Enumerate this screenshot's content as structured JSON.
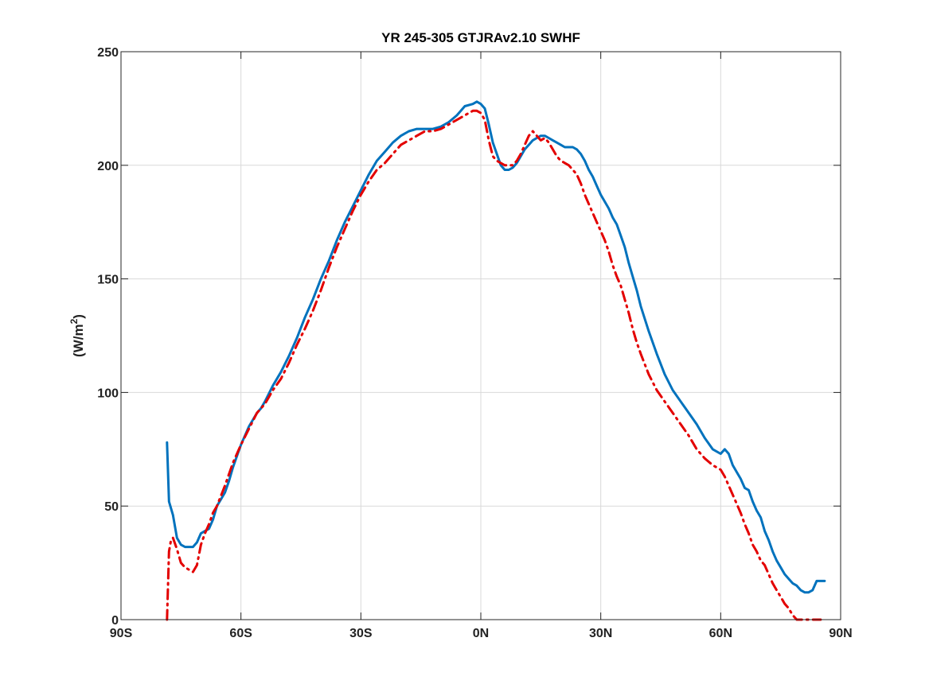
{
  "chart_data": {
    "type": "line",
    "title": "YR 245-305 GTJRAv2.10    SWHF",
    "ylabel_main": "(W/m",
    "ylabel_sup": "2",
    "ylabel_close": ")",
    "xlabel": "",
    "xlim": [
      -90,
      90
    ],
    "ylim": [
      0,
      250
    ],
    "xticks": [
      -90,
      -60,
      -30,
      0,
      30,
      60,
      90
    ],
    "xtick_labels": [
      "90S",
      "60S",
      "30S",
      "0N",
      "30N",
      "60N",
      "90N"
    ],
    "yticks": [
      0,
      50,
      100,
      150,
      200,
      250
    ],
    "ytick_labels": [
      "0",
      "50",
      "100",
      "150",
      "200",
      "250"
    ],
    "grid": true,
    "series": [
      {
        "color": "#0072BD",
        "style": "solid",
        "x": [
          -78.5,
          -78,
          -77,
          -76,
          -75,
          -74,
          -73,
          -72,
          -71,
          -70,
          -69,
          -68,
          -67,
          -66,
          -65,
          -64,
          -63,
          -62,
          -61,
          -60,
          -59,
          -58,
          -57,
          -56,
          -55,
          -54,
          -52,
          -50,
          -48,
          -46,
          -44,
          -42,
          -40,
          -38,
          -36,
          -34,
          -32,
          -30,
          -28,
          -26,
          -24,
          -22,
          -20,
          -18,
          -16,
          -14,
          -12,
          -10,
          -8,
          -6,
          -4,
          -2,
          -1,
          0,
          1,
          2,
          3,
          4,
          5,
          6,
          7,
          8,
          9,
          10,
          11,
          12,
          13,
          14,
          15,
          16,
          17,
          18,
          19,
          20,
          21,
          22,
          23,
          24,
          25,
          26,
          27,
          28,
          29,
          30,
          31,
          32,
          33,
          34,
          35,
          36,
          37,
          38,
          39,
          40,
          42,
          44,
          46,
          48,
          50,
          52,
          54,
          56,
          58,
          60,
          61,
          62,
          63,
          64,
          65,
          66,
          67,
          68,
          69,
          70,
          71,
          72,
          73,
          74,
          75,
          76,
          77,
          78,
          79,
          80,
          81,
          82,
          83,
          84,
          85,
          86
        ],
        "y": [
          78,
          52,
          46,
          36,
          33,
          32,
          32,
          32,
          34,
          38,
          39,
          40,
          44,
          50,
          53,
          56,
          61,
          67,
          72,
          77,
          81,
          85,
          88,
          91,
          93,
          96,
          103,
          109,
          116,
          124,
          133,
          141,
          150,
          158,
          167,
          175,
          182,
          189,
          196,
          202,
          206,
          210,
          213,
          215,
          216,
          216,
          216,
          217,
          219,
          222,
          226,
          227,
          228,
          227,
          225,
          218,
          210,
          205,
          200,
          198,
          198,
          199,
          201,
          204,
          207,
          209,
          211,
          212,
          213,
          213,
          212,
          211,
          210,
          209,
          208,
          208,
          208,
          207,
          205,
          202,
          198,
          195,
          191,
          187,
          184,
          181,
          177,
          174,
          169,
          164,
          157,
          151,
          145,
          138,
          127,
          117,
          108,
          101,
          96,
          91,
          86,
          80,
          75,
          73,
          75,
          73,
          68,
          65,
          62,
          58,
          57,
          52,
          48,
          45,
          39,
          35,
          30,
          26,
          23,
          20,
          18,
          16,
          15,
          13,
          12,
          12,
          13,
          17,
          17,
          17
        ],
        "note": ""
      },
      {
        "color": "#E30000",
        "style": "dashdot",
        "x": [
          -78.5,
          -78,
          -77.5,
          -77,
          -76,
          -75,
          -74,
          -73,
          -72,
          -71,
          -70,
          -69,
          -68,
          -67,
          -66,
          -64,
          -62,
          -60,
          -58,
          -56,
          -54,
          -52,
          -50,
          -48,
          -46,
          -44,
          -42,
          -40,
          -38,
          -36,
          -34,
          -32,
          -30,
          -28,
          -26,
          -24,
          -22,
          -20,
          -18,
          -16,
          -14,
          -12,
          -10,
          -8,
          -6,
          -4,
          -2,
          -1,
          0,
          1,
          2,
          3,
          4,
          5,
          6,
          7,
          8,
          9,
          10,
          11,
          12,
          13,
          14,
          15,
          16,
          17,
          18,
          19,
          20,
          21,
          22,
          23,
          24,
          25,
          26,
          27,
          28,
          29,
          30,
          31,
          32,
          33,
          34,
          35,
          36,
          37,
          38,
          39,
          40,
          42,
          44,
          46,
          48,
          50,
          52,
          54,
          56,
          58,
          60,
          61,
          62,
          63,
          64,
          65,
          66,
          67,
          68,
          69,
          70,
          71,
          72,
          73,
          74,
          75,
          76,
          77,
          78,
          79,
          80,
          81,
          82,
          83,
          84,
          85
        ],
        "y": [
          0,
          30,
          35,
          36,
          31,
          25,
          23,
          22,
          21,
          24,
          33,
          38,
          42,
          47,
          50,
          59,
          69,
          77,
          84,
          91,
          95,
          101,
          106,
          113,
          121,
          128,
          136,
          145,
          155,
          164,
          172,
          180,
          187,
          193,
          198,
          201,
          205,
          209,
          211,
          213,
          215,
          215,
          216,
          218,
          220,
          222,
          224,
          224,
          223,
          220,
          211,
          204,
          202,
          201,
          200,
          200,
          200,
          202,
          205,
          209,
          213,
          215,
          213,
          211,
          212,
          210,
          207,
          204,
          202,
          201,
          200,
          198,
          196,
          192,
          187,
          183,
          179,
          175,
          171,
          167,
          162,
          156,
          151,
          147,
          141,
          135,
          128,
          122,
          117,
          108,
          101,
          96,
          91,
          86,
          81,
          75,
          71,
          68,
          66,
          63,
          59,
          55,
          51,
          47,
          42,
          38,
          33,
          30,
          26,
          24,
          20,
          16,
          13,
          10,
          7,
          5,
          2,
          0,
          0,
          0,
          0,
          0,
          0,
          0
        ],
        "note": ""
      }
    ]
  }
}
